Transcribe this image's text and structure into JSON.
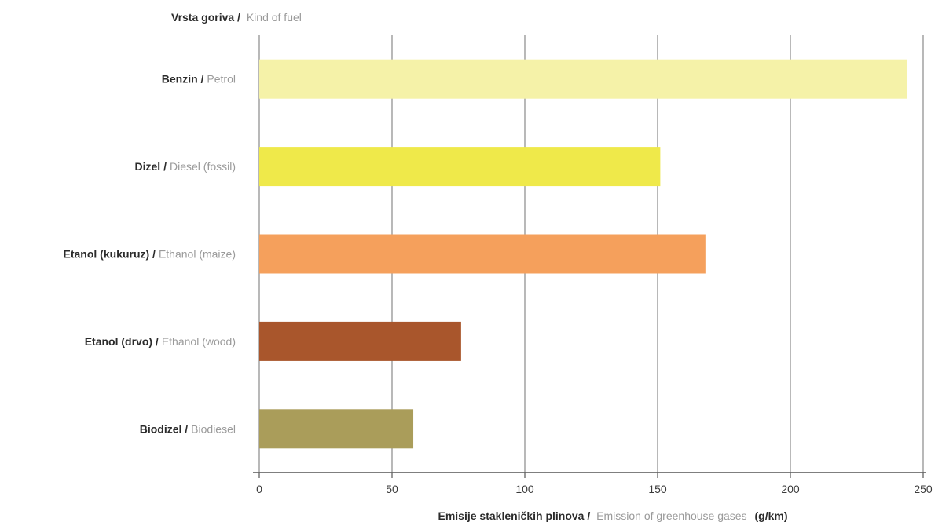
{
  "chart_data": {
    "type": "bar",
    "orientation": "horizontal",
    "y_title": {
      "main": "Vrsta goriva /",
      "sub": "Kind of fuel"
    },
    "x_title": {
      "main": "Emisije stakleničkih plinova /",
      "sub": "Emission of greenhouse gases",
      "unit": "(g/km)"
    },
    "categories": [
      {
        "main": "Benzin /",
        "sub": "Petrol"
      },
      {
        "main": "Dizel /",
        "sub": "Diesel (fossil)"
      },
      {
        "main": "Etanol (kukuruz) /",
        "sub": "Ethanol (maize)"
      },
      {
        "main": "Etanol (drvo) /",
        "sub": "Ethanol (wood)"
      },
      {
        "main": "Biodizel /",
        "sub": "Biodiesel"
      }
    ],
    "values": [
      244,
      151,
      168,
      76,
      58
    ],
    "colors": [
      "#f5f2a8",
      "#efe94a",
      "#f5a05c",
      "#a9562c",
      "#aa9d5a"
    ],
    "xlim": [
      0,
      250
    ],
    "xticks": [
      0,
      50,
      100,
      150,
      200,
      250
    ],
    "grid": true,
    "legend": "none"
  }
}
